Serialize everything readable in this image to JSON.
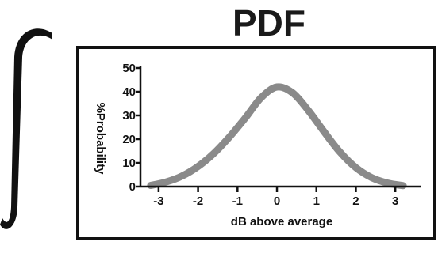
{
  "figure": {
    "title": "PDF",
    "integral_symbol": "integral-sign"
  },
  "colors": {
    "curve": "#8a8a8a",
    "ink": "#111111",
    "frame": "#111111"
  },
  "chart_data": {
    "type": "line",
    "title": "PDF",
    "xlabel": "dB above average",
    "ylabel": "%Probability",
    "xlim": [
      -3.4,
      3.6
    ],
    "ylim": [
      0,
      50
    ],
    "xticks": [
      -3,
      -2,
      -1,
      0,
      1,
      2,
      3
    ],
    "xtick_labels": [
      "-3",
      "-2",
      "-1",
      "0",
      "1",
      "2",
      "3"
    ],
    "yticks": [
      0,
      10,
      20,
      30,
      40,
      50
    ],
    "ytick_labels": [
      "0",
      "10",
      "20",
      "30",
      "40",
      "50"
    ],
    "grid": false,
    "legend": "none",
    "series": [
      {
        "x": [
          -3.2,
          -2.8,
          -2.4,
          -2.0,
          -1.6,
          -1.2,
          -0.8,
          -0.4,
          0.0,
          0.4,
          0.8,
          1.2,
          1.6,
          2.0,
          2.4,
          2.8,
          3.2
        ],
        "y": [
          0.5,
          2.0,
          4.5,
          8.5,
          14.0,
          21.0,
          29.0,
          37.5,
          42.0,
          39.5,
          32.0,
          23.0,
          14.5,
          8.0,
          3.8,
          1.5,
          0.4
        ]
      }
    ]
  }
}
